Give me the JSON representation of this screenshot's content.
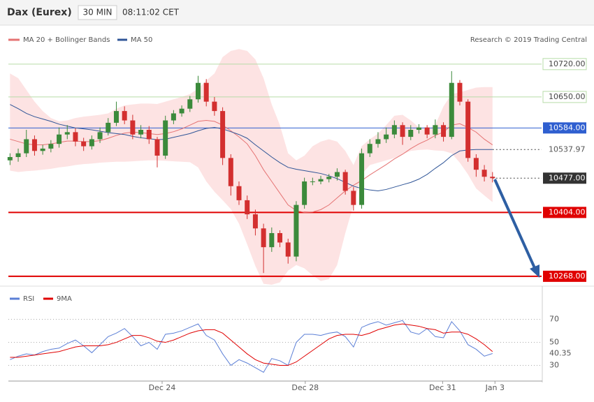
{
  "header": {
    "title": "Dax (Eurex)",
    "interval": "30 MIN",
    "time": "08:11:02 CET"
  },
  "chart_data": [
    {
      "type": "candlestick",
      "credit": "Research © 2019 Trading Central",
      "up_color": "#3b8a3b",
      "down_color": "#d32f2f",
      "open": [
        10515,
        10522,
        10530,
        10560,
        10535,
        10540,
        10550,
        10570,
        10575,
        10555,
        10545,
        10560,
        10575,
        10595,
        10620,
        10600,
        10570,
        10580,
        10560,
        10525,
        10600,
        10615,
        10625,
        10645,
        10680,
        10640,
        10620,
        10520,
        10460,
        10430,
        10400,
        10370,
        10330,
        10360,
        10340,
        10310,
        10420,
        10470,
        10470,
        10475,
        10480,
        10490,
        10450,
        10420,
        10530,
        10550,
        10560,
        10570,
        10590,
        10565,
        10580,
        10585,
        10570,
        10590,
        10565,
        10680,
        10640,
        10520,
        10495,
        10480
      ],
      "high": [
        10530,
        10540,
        10580,
        10568,
        10548,
        10558,
        10585,
        10590,
        10583,
        10563,
        10568,
        10585,
        10605,
        10640,
        10630,
        10612,
        10590,
        10588,
        10565,
        10610,
        10622,
        10632,
        10652,
        10695,
        10688,
        10650,
        10628,
        10528,
        10470,
        10440,
        10410,
        10380,
        10372,
        10366,
        10348,
        10428,
        10478,
        10478,
        10482,
        10486,
        10498,
        10495,
        10458,
        10540,
        10560,
        10575,
        10585,
        10600,
        10596,
        10590,
        10592,
        10590,
        10602,
        10596,
        10705,
        10686,
        10645,
        10528,
        10505,
        10490
      ],
      "low": [
        10505,
        10512,
        10522,
        10525,
        10527,
        10532,
        10542,
        10560,
        10545,
        10535,
        10538,
        10552,
        10568,
        10588,
        10592,
        10560,
        10562,
        10550,
        10500,
        10518,
        10592,
        10608,
        10618,
        10638,
        10630,
        10610,
        10505,
        10440,
        10420,
        10390,
        10355,
        10275,
        10320,
        10330,
        10295,
        10300,
        10412,
        10462,
        10464,
        10468,
        10472,
        10442,
        10408,
        10412,
        10522,
        10542,
        10552,
        10562,
        10548,
        10558,
        10572,
        10562,
        10562,
        10555,
        10560,
        10632,
        10512,
        10480,
        10470,
        10468
      ],
      "close": [
        10522,
        10530,
        10560,
        10535,
        10540,
        10550,
        10570,
        10575,
        10555,
        10545,
        10560,
        10575,
        10595,
        10620,
        10600,
        10570,
        10580,
        10560,
        10525,
        10600,
        10615,
        10625,
        10645,
        10680,
        10640,
        10620,
        10520,
        10460,
        10430,
        10400,
        10370,
        10330,
        10360,
        10340,
        10310,
        10420,
        10470,
        10470,
        10475,
        10480,
        10490,
        10450,
        10420,
        10530,
        10550,
        10560,
        10570,
        10590,
        10565,
        10580,
        10585,
        10570,
        10590,
        10565,
        10680,
        10640,
        10520,
        10495,
        10480,
        10477
      ],
      "series": [
        {
          "name": "MA 20 + Bollinger Bands",
          "color": "#e57373",
          "band_color": "#fde3e3",
          "values": [
            10560,
            10555,
            10550,
            10548,
            10548,
            10550,
            10553,
            10556,
            10556,
            10555,
            10555,
            10557,
            10562,
            10568,
            10573,
            10575,
            10574,
            10572,
            10570,
            10572,
            10576,
            10582,
            10590,
            10598,
            10600,
            10598,
            10590,
            10578,
            10565,
            10550,
            10525,
            10495,
            10470,
            10445,
            10420,
            10408,
            10404,
            10405,
            10410,
            10420,
            10435,
            10450,
            10462,
            10472,
            10484,
            10495,
            10506,
            10518,
            10528,
            10540,
            10550,
            10558,
            10568,
            10575,
            10590,
            10593,
            10585,
            10575,
            10560,
            10548
          ],
          "upper": [
            10700,
            10690,
            10665,
            10640,
            10620,
            10605,
            10598,
            10600,
            10605,
            10608,
            10610,
            10612,
            10615,
            10625,
            10632,
            10634,
            10636,
            10636,
            10635,
            10640,
            10645,
            10650,
            10656,
            10668,
            10685,
            10700,
            10735,
            10748,
            10752,
            10748,
            10730,
            10690,
            10634,
            10590,
            10530,
            10515,
            10525,
            10545,
            10555,
            10560,
            10555,
            10535,
            10505,
            10545,
            10560,
            10572,
            10590,
            10610,
            10612,
            10600,
            10585,
            10580,
            10590,
            10630,
            10656,
            10660,
            10665,
            10670,
            10671,
            10671
          ],
          "lower": [
            10493,
            10490,
            10492,
            10493,
            10495,
            10497,
            10500,
            10502,
            10505,
            10507,
            10508,
            10510,
            10511,
            10512,
            10512,
            10513,
            10514,
            10515,
            10515,
            10514,
            10513,
            10512,
            10511,
            10500,
            10470,
            10448,
            10430,
            10411,
            10380,
            10336,
            10290,
            10252,
            10250,
            10255,
            10280,
            10292,
            10285,
            10270,
            10258,
            10262,
            10292,
            10360,
            10420,
            10485,
            10505,
            10510,
            10515,
            10520,
            10528,
            10535,
            10537,
            10538,
            10536,
            10535,
            10530,
            10510,
            10485,
            10455,
            10440,
            10426
          ]
        },
        {
          "name": "MA 50",
          "color": "#2f5597",
          "values": [
            10634,
            10625,
            10615,
            10608,
            10603,
            10598,
            10592,
            10588,
            10584,
            10582,
            10580,
            10577,
            10574,
            10572,
            10570,
            10566,
            10563,
            10561,
            10559,
            10560,
            10564,
            10568,
            10572,
            10578,
            10583,
            10585,
            10582,
            10576,
            10570,
            10562,
            10548,
            10535,
            10522,
            10510,
            10500,
            10496,
            10493,
            10490,
            10487,
            10482,
            10476,
            10468,
            10460,
            10455,
            10452,
            10450,
            10453,
            10458,
            10463,
            10468,
            10475,
            10485,
            10498,
            10510,
            10525,
            10535,
            10537,
            10538,
            10538,
            10538
          ]
        }
      ],
      "levels": [
        {
          "value": 10720,
          "label": "10720.00",
          "color": "#b7dca8",
          "style": "outline"
        },
        {
          "value": 10650,
          "label": "10650.00",
          "color": "#b7dca8",
          "style": "outline"
        },
        {
          "value": 10584,
          "label": "10584.00",
          "color": "#2f5fd0",
          "style": "filled"
        },
        {
          "value": 10537.97,
          "label": "10537.97",
          "color": "#555555",
          "style": "plain"
        },
        {
          "value": 10477,
          "label": "10477.00",
          "color": "#333333",
          "style": "current"
        },
        {
          "value": 10404,
          "label": "10404.00",
          "color": "#e00000",
          "style": "filled"
        },
        {
          "value": 10268,
          "label": "10268.00",
          "color": "#e00000",
          "style": "filled"
        }
      ],
      "ylim": [
        10247,
        10803
      ],
      "xlim": [
        -0.2,
        65
      ],
      "xticks": [
        {
          "value": 18.6,
          "label": "Dec 24"
        },
        {
          "value": 36.1,
          "label": "Dec 28"
        },
        {
          "value": 52.9,
          "label": "Dec 31"
        },
        {
          "value": 59.3,
          "label": "Jan 3"
        }
      ]
    },
    {
      "type": "line",
      "series": [
        {
          "name": "RSI",
          "color": "#5b7fd6",
          "values": [
            35,
            38,
            40,
            39,
            42,
            44,
            45,
            49,
            52,
            47,
            41,
            48,
            55,
            58,
            62,
            55,
            47,
            50,
            44,
            57,
            58,
            60,
            63,
            66,
            56,
            52,
            40,
            30,
            35,
            32,
            28,
            24,
            36,
            34,
            30,
            50,
            57,
            57,
            56,
            58,
            59,
            55,
            46,
            63,
            66,
            68,
            65,
            67,
            69,
            59,
            57,
            62,
            55,
            54,
            68,
            60,
            48,
            44,
            38,
            40.35
          ]
        },
        {
          "name": "9MA",
          "color": "#e00000",
          "values": [
            37,
            37,
            38,
            39,
            40,
            41,
            42,
            44,
            46,
            47,
            47,
            47,
            48,
            50,
            53,
            56,
            56,
            54,
            51,
            50,
            52,
            55,
            58,
            60,
            61,
            61,
            58,
            52,
            46,
            40,
            35,
            32,
            31,
            30,
            30,
            33,
            38,
            43,
            48,
            53,
            56,
            57,
            57,
            56,
            58,
            61,
            63,
            65,
            66,
            65,
            64,
            62,
            61,
            58,
            59,
            59,
            57,
            53,
            48,
            42
          ]
        }
      ],
      "ylim": [
        17,
        97
      ],
      "yticks": [
        30,
        50,
        70
      ],
      "xlim": [
        -0.2,
        65
      ]
    }
  ]
}
